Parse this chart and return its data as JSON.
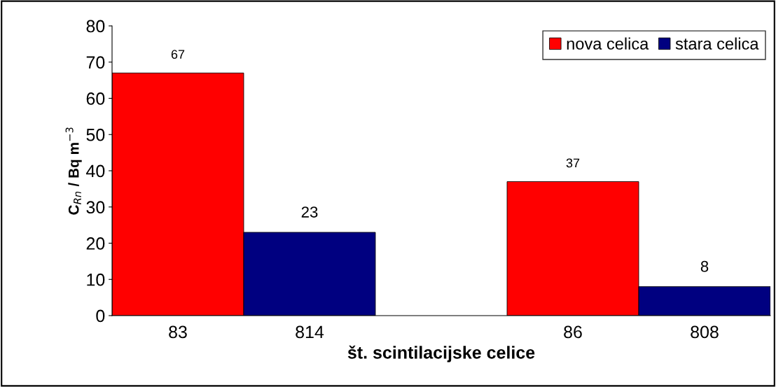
{
  "chart_data": {
    "type": "bar",
    "xlabel": "št. scintilacijske celice",
    "ylabel": "C$_{Rn}$ / Bq m$^{−3}$",
    "categories": [
      "83",
      "814",
      null,
      "86",
      "808"
    ],
    "series": [
      {
        "name": "nova celica",
        "color": "#ff0000",
        "values": [
          67,
          null,
          null,
          37,
          null
        ]
      },
      {
        "name": "stara celica",
        "color": "#000080",
        "values": [
          null,
          23,
          null,
          null,
          8
        ]
      }
    ],
    "ylim": [
      0,
      80
    ],
    "yticks": [
      0,
      10,
      20,
      30,
      40,
      50,
      60,
      70,
      80
    ],
    "grid": false,
    "legend": "top right",
    "data_labels": true
  }
}
